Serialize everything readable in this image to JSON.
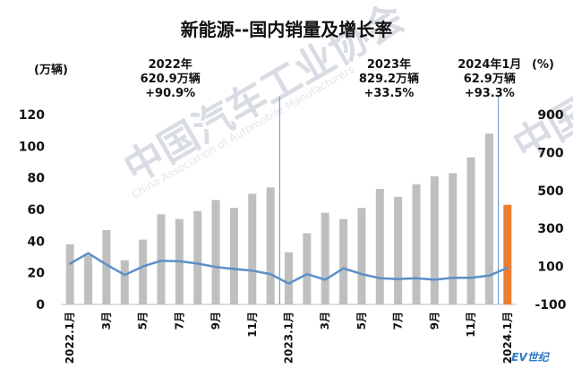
{
  "chart_data": {
    "type": "bar",
    "title": "新能源--国内销量及增长率",
    "y_left_unit": "(万辆)",
    "y_right_unit": "(%)",
    "y_left_ticks": [
      "0",
      "20",
      "40",
      "60",
      "80",
      "100",
      "120"
    ],
    "y_right_ticks": [
      "-100",
      "100",
      "300",
      "500",
      "700",
      "900"
    ],
    "ylim_left": [
      0,
      120
    ],
    "ylim_right": [
      -100,
      900
    ],
    "x_tick_labels": [
      "2022.1月",
      "3月",
      "5月",
      "7月",
      "9月",
      "11月",
      "2023.1月",
      "3月",
      "5月",
      "7月",
      "9月",
      "11月",
      "2024.1月"
    ],
    "categories": [
      "2022.1月",
      "2022.2月",
      "2022.3月",
      "2022.4月",
      "2022.5月",
      "2022.6月",
      "2022.7月",
      "2022.8月",
      "2022.9月",
      "2022.10月",
      "2022.11月",
      "2022.12月",
      "2023.1月",
      "2023.2月",
      "2023.3月",
      "2023.4月",
      "2023.5月",
      "2023.6月",
      "2023.7月",
      "2023.8月",
      "2023.9月",
      "2023.10月",
      "2023.11月",
      "2023.12月",
      "2024.1月"
    ],
    "series": [
      {
        "kind": "bar",
        "axis": "left",
        "values": [
          38,
          31,
          47,
          28,
          41,
          57,
          54,
          59,
          66,
          61,
          70,
          74,
          33,
          45,
          58,
          54,
          61,
          73,
          68,
          76,
          81,
          83,
          93,
          108,
          63
        ],
        "color": "#bfbfbf",
        "highlight_last_color": "#ed7d31"
      },
      {
        "kind": "line",
        "axis": "right",
        "values": [
          115,
          170,
          110,
          55,
          100,
          130,
          128,
          115,
          97,
          87,
          78,
          60,
          10,
          60,
          30,
          90,
          60,
          38,
          34,
          38,
          30,
          40,
          40,
          52,
          93
        ],
        "color": "#5b8fc9"
      }
    ],
    "annotations": [
      {
        "lines": [
          "2022年",
          "620.9万辆",
          "+90.9%"
        ]
      },
      {
        "lines": [
          "2023年",
          "829.2万辆",
          "+33.5%"
        ]
      },
      {
        "lines": [
          "2024年1月",
          "62.9万辆",
          "+93.3%"
        ]
      }
    ],
    "watermark": {
      "main": "中国汽车工业协会",
      "sub": "China Association of Automobile Manufacturers"
    },
    "brand": "EV世纪"
  }
}
